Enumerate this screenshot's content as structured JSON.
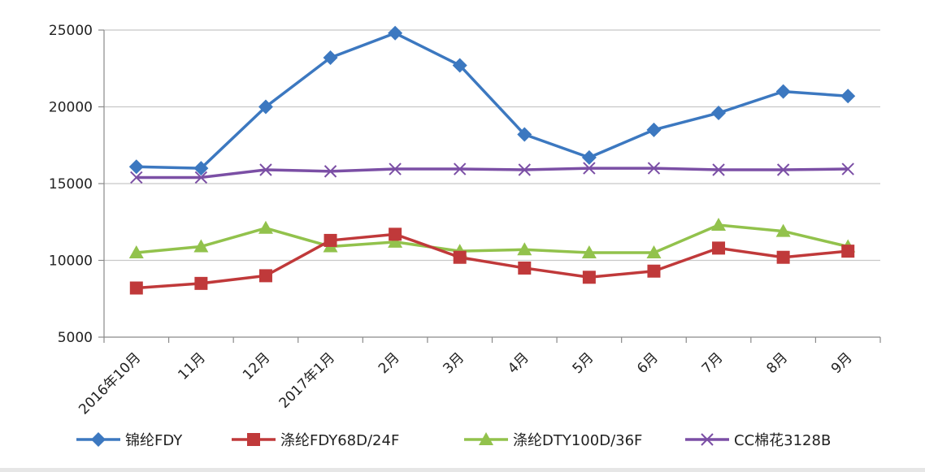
{
  "chart_data": {
    "type": "line",
    "categories": [
      "2016年10月",
      "11月",
      "12月",
      "2017年1月",
      "2月",
      "3月",
      "4月",
      "5月",
      "6月",
      "7月",
      "8月",
      "9月"
    ],
    "series": [
      {
        "name": "锦纶FDY",
        "color": "#3c78c0",
        "marker": "diamond",
        "values": [
          16100,
          16000,
          20000,
          23200,
          24800,
          22700,
          18200,
          16700,
          18500,
          19600,
          21000,
          20700
        ]
      },
      {
        "name": "涤纶FDY68D/24F",
        "color": "#c0393a",
        "marker": "square",
        "values": [
          8200,
          8500,
          9000,
          11300,
          11700,
          10200,
          9500,
          8900,
          9300,
          10800,
          10200,
          10600
        ]
      },
      {
        "name": "涤纶DTY100D/36F",
        "color": "#92c24c",
        "marker": "triangle",
        "values": [
          10500,
          10900,
          12100,
          10900,
          11200,
          10600,
          10700,
          10500,
          10500,
          12300,
          11900,
          10900
        ]
      },
      {
        "name": "CC棉花3128B",
        "color": "#7b4fa5",
        "marker": "x",
        "values": [
          15400,
          15400,
          15900,
          15800,
          15950,
          15950,
          15900,
          16000,
          16000,
          15900,
          15900,
          15950
        ]
      }
    ],
    "y_ticks": [
      "25000",
      "20000",
      "15000",
      "10000",
      "5000"
    ],
    "ylim": [
      5000,
      25000
    ],
    "grid": true,
    "legend_position": "bottom"
  }
}
